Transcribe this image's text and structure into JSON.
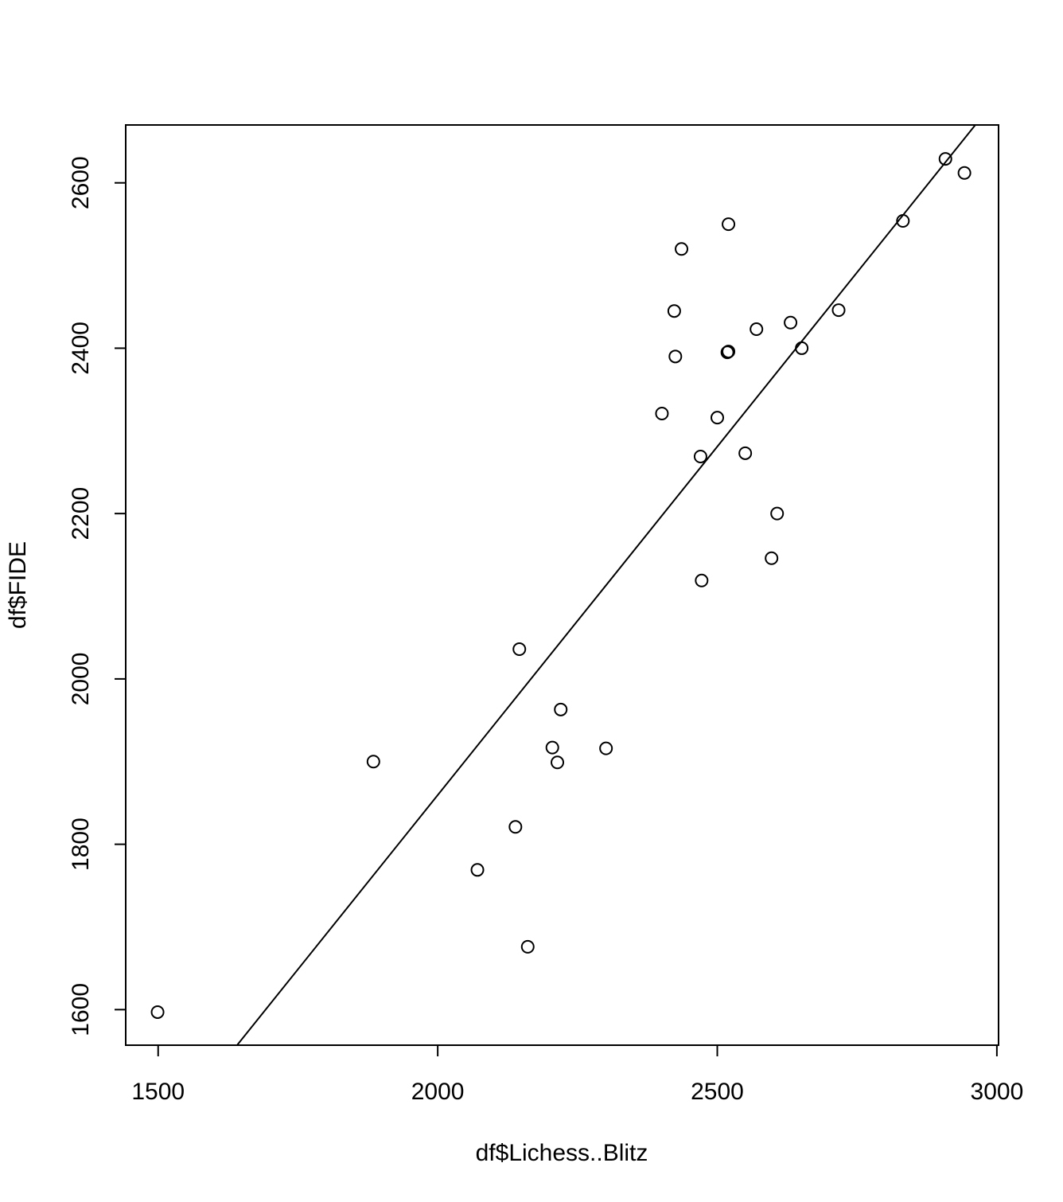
{
  "chart_data": {
    "type": "scatter",
    "x_label": "df$Lichess..Blitz",
    "y_label": "df$FIDE",
    "x": [
      1499,
      1885,
      2071,
      2139,
      2146,
      2161,
      2205,
      2214,
      2220,
      2301,
      2401,
      2423,
      2425,
      2436,
      2470,
      2472,
      2500,
      2520,
      2518,
      2520,
      2550,
      2570,
      2597,
      2607,
      2631,
      2651,
      2717,
      2832,
      2908,
      2942
    ],
    "y": [
      1597,
      1900,
      1769,
      1821,
      2036,
      1676,
      1917,
      1899,
      1963,
      1916,
      2321,
      2445,
      2390,
      2520,
      2269,
      2119,
      2316,
      2550,
      2395,
      2396,
      2273,
      2423,
      2146,
      2200,
      2431,
      2400,
      2446,
      2554,
      2629,
      2612
    ],
    "abline": {
      "intercept": 173.5,
      "slope": 0.843
    },
    "color": "#000000",
    "xlim": [
      1442,
      3003
    ],
    "ylim": [
      1557,
      2670
    ],
    "xticks": [
      1500,
      2000,
      2500,
      3000
    ],
    "yticks": [
      1600,
      1800,
      2000,
      2200,
      2400,
      2600
    ]
  }
}
